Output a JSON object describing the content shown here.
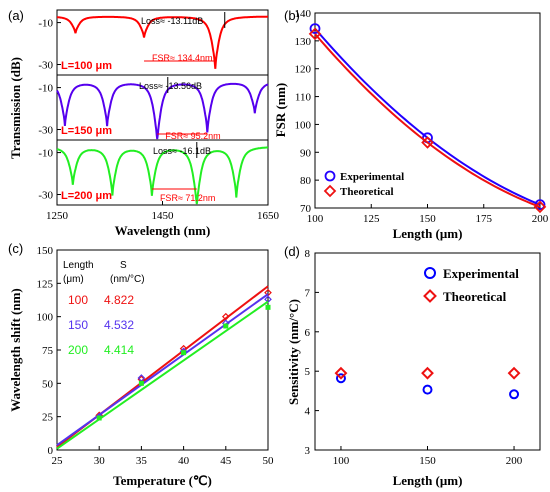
{
  "chart_data": [
    {
      "panel": "(a)",
      "type": "line",
      "xlabel": "Wavelength (nm)",
      "ylabel": "Transmission (dB)",
      "xlim": [
        1250,
        1650
      ],
      "xticks": [
        "1250",
        "1450",
        "1650"
      ],
      "subplots": [
        {
          "label": "L=100 μm",
          "color": "#ff0000",
          "ylim": [
            -35,
            -4
          ],
          "yticks": [
            "-10",
            "-30"
          ],
          "dips": [
            1285,
            1415,
            1550
          ],
          "dip_depth": [
            -15,
            -17,
            -32
          ],
          "loss_text": "Loss≈ -13.11dB",
          "fsr_text": "FSR≈ 134.4nm"
        },
        {
          "label": "L=150 μm",
          "color": "#5500ee",
          "ylim": [
            -35,
            -4
          ],
          "yticks": [
            "-10",
            "-30"
          ],
          "dips": [
            1265,
            1345,
            1440,
            1535,
            1625
          ],
          "dip_depth": [
            -28,
            -28,
            -36,
            -31,
            -22
          ],
          "loss_text": "Loss≈ -13.56dB",
          "fsr_text": "FSR≈ 95.2nm"
        },
        {
          "label": "L=200 μm",
          "color": "#22ee22",
          "ylim": [
            -35,
            -4
          ],
          "yticks": [
            "-10",
            "-30"
          ],
          "dips": [
            1280,
            1355,
            1430,
            1515,
            1590
          ],
          "dip_depth": [
            -25,
            -30,
            -30,
            -36,
            -31
          ],
          "loss_text": "Loss≈ -16.1dB",
          "fsr_text": "FSR≈ 71.2nm"
        }
      ]
    },
    {
      "panel": "(b)",
      "type": "line",
      "xlabel": "Length (μm)",
      "ylabel": "FSR (nm)",
      "xlim": [
        100,
        200
      ],
      "ylim": [
        70,
        140
      ],
      "xticks": [
        "100",
        "125",
        "150",
        "175",
        "200"
      ],
      "yticks": [
        "70",
        "80",
        "90",
        "100",
        "110",
        "120",
        "130",
        "140"
      ],
      "x": [
        100,
        150,
        200
      ],
      "series": [
        {
          "name": "Experimental",
          "values": [
            134.4,
            95.2,
            71.2
          ],
          "color": "#2200ff",
          "marker": "circle"
        },
        {
          "name": "Theoretical",
          "values": [
            132.5,
            93.5,
            70.4
          ],
          "color": "#ee1111",
          "marker": "diamond"
        }
      ],
      "legend": "bottom-left"
    },
    {
      "panel": "(c)",
      "type": "line",
      "xlabel": "Temperature (℃)",
      "ylabel": "Wavelength shift (nm)",
      "xlim": [
        25,
        50
      ],
      "ylim": [
        0,
        150
      ],
      "xticks": [
        "25",
        "30",
        "35",
        "40",
        "45",
        "50"
      ],
      "yticks": [
        "0",
        "25",
        "50",
        "75",
        "100",
        "125",
        "150"
      ],
      "table_header": {
        "c1": "Length",
        "c2": "S",
        "c1b": "(μm)",
        "c2b": "(nm/°C)"
      },
      "series": [
        {
          "name": "100",
          "slope_text": "4.822",
          "color": "#ee1111",
          "marker": "diamond",
          "x": [
            30,
            35,
            40,
            45,
            50
          ],
          "values": [
            26,
            53,
            76,
            100,
            118
          ],
          "fit": [
            2.2,
            122.8
          ]
        },
        {
          "name": "150",
          "slope_text": "4.532",
          "color": "#5533ee",
          "marker": "diamond",
          "x": [
            30,
            35,
            40,
            45,
            50
          ],
          "values": [
            25,
            54,
            74,
            95,
            113
          ],
          "fit": [
            3.6,
            116.9
          ]
        },
        {
          "name": "200",
          "slope_text": "4.414",
          "color": "#22ee22",
          "marker": "square",
          "x": [
            30,
            35,
            40,
            45,
            50
          ],
          "values": [
            24,
            50,
            73,
            93,
            107
          ],
          "fit": [
            1.0,
            111.3
          ]
        }
      ]
    },
    {
      "panel": "(d)",
      "type": "scatter",
      "xlabel": "Length (μm)",
      "ylabel": "Sensitivity (nm/°C)",
      "xlim": [
        85,
        215
      ],
      "ylim": [
        3,
        8
      ],
      "xticks": [
        "100",
        "150",
        "200"
      ],
      "yticks": [
        "3",
        "4",
        "5",
        "6",
        "7",
        "8"
      ],
      "x": [
        100,
        150,
        200
      ],
      "series": [
        {
          "name": "Experimental",
          "values": [
            4.822,
            4.532,
            4.414
          ],
          "color": "#0000ff",
          "marker": "circle"
        },
        {
          "name": "Theoretical",
          "values": [
            4.95,
            4.95,
            4.95
          ],
          "color": "#ee1111",
          "marker": "diamond"
        }
      ],
      "legend": "top-right"
    }
  ]
}
